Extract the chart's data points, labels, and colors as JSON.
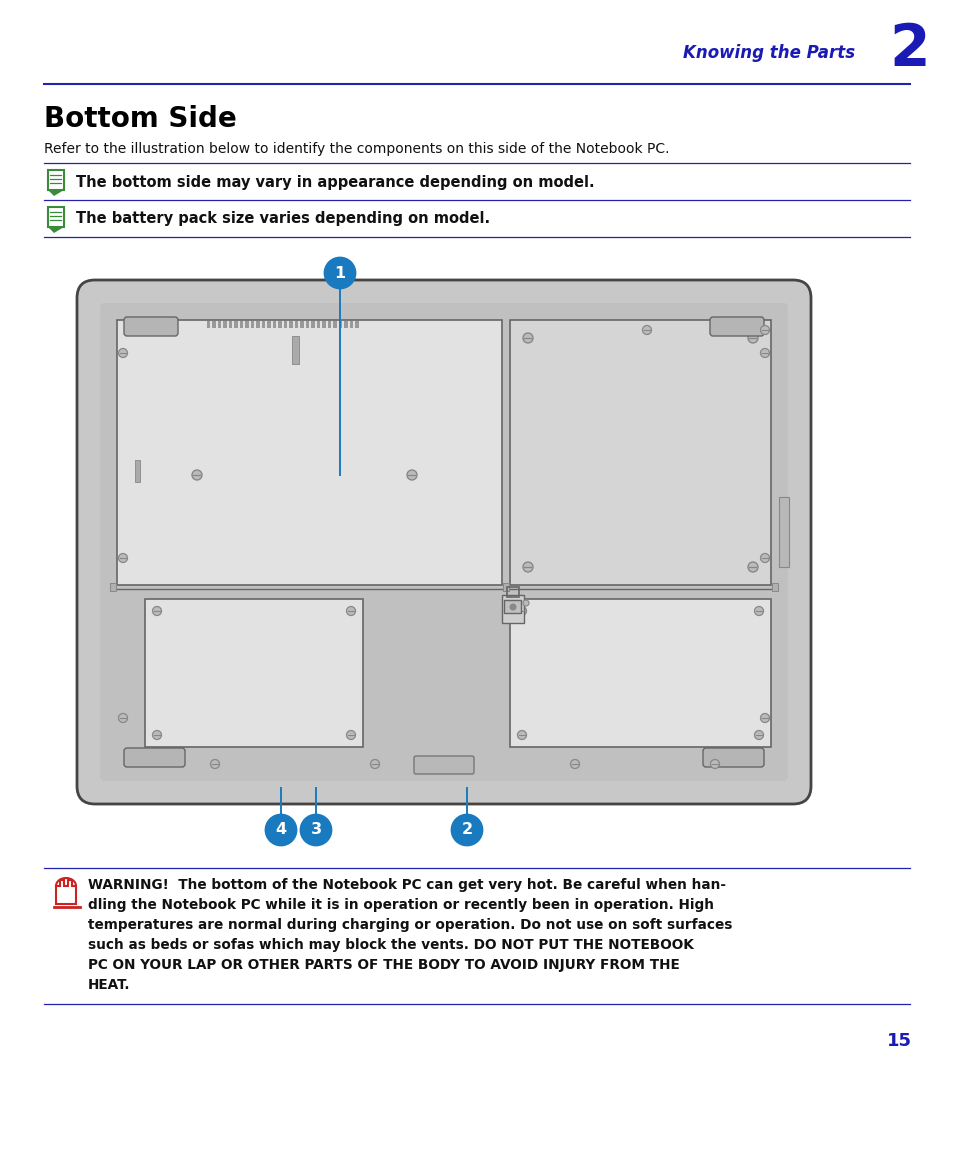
{
  "bg_color": "#ffffff",
  "header_text": "Knowing the Parts",
  "header_num": "2",
  "header_color": "#1a1ab5",
  "title": "Bottom Side",
  "subtitle": "Refer to the illustration below to identify the components on this side of the Notebook PC.",
  "note1": "The bottom side may vary in appearance depending on model.",
  "note2": "The battery pack size varies depending on model.",
  "warning_text": "WARNING!  The bottom of the Notebook PC can get very hot. Be careful when han-\ndling the Notebook PC while it is in operation or recently been in operation. High\ntemperatures are normal during charging or operation. Do not use on soft surfaces\nsuch as beds or sofas which may block the vents. DO NOT PUT THE NOTEBOOK\nPC ON YOUR LAP OR OTHER PARTS OF THE BODY TO AVOID INJURY FROM THE\nHEAT.",
  "page_num": "15",
  "line_color": "#2222aa",
  "callout_color": "#1a7abf",
  "laptop_outer": "#444444",
  "laptop_shell": "#c8c8c8",
  "panel_light": "#e2e2e2",
  "panel_med": "#d5d5d5"
}
